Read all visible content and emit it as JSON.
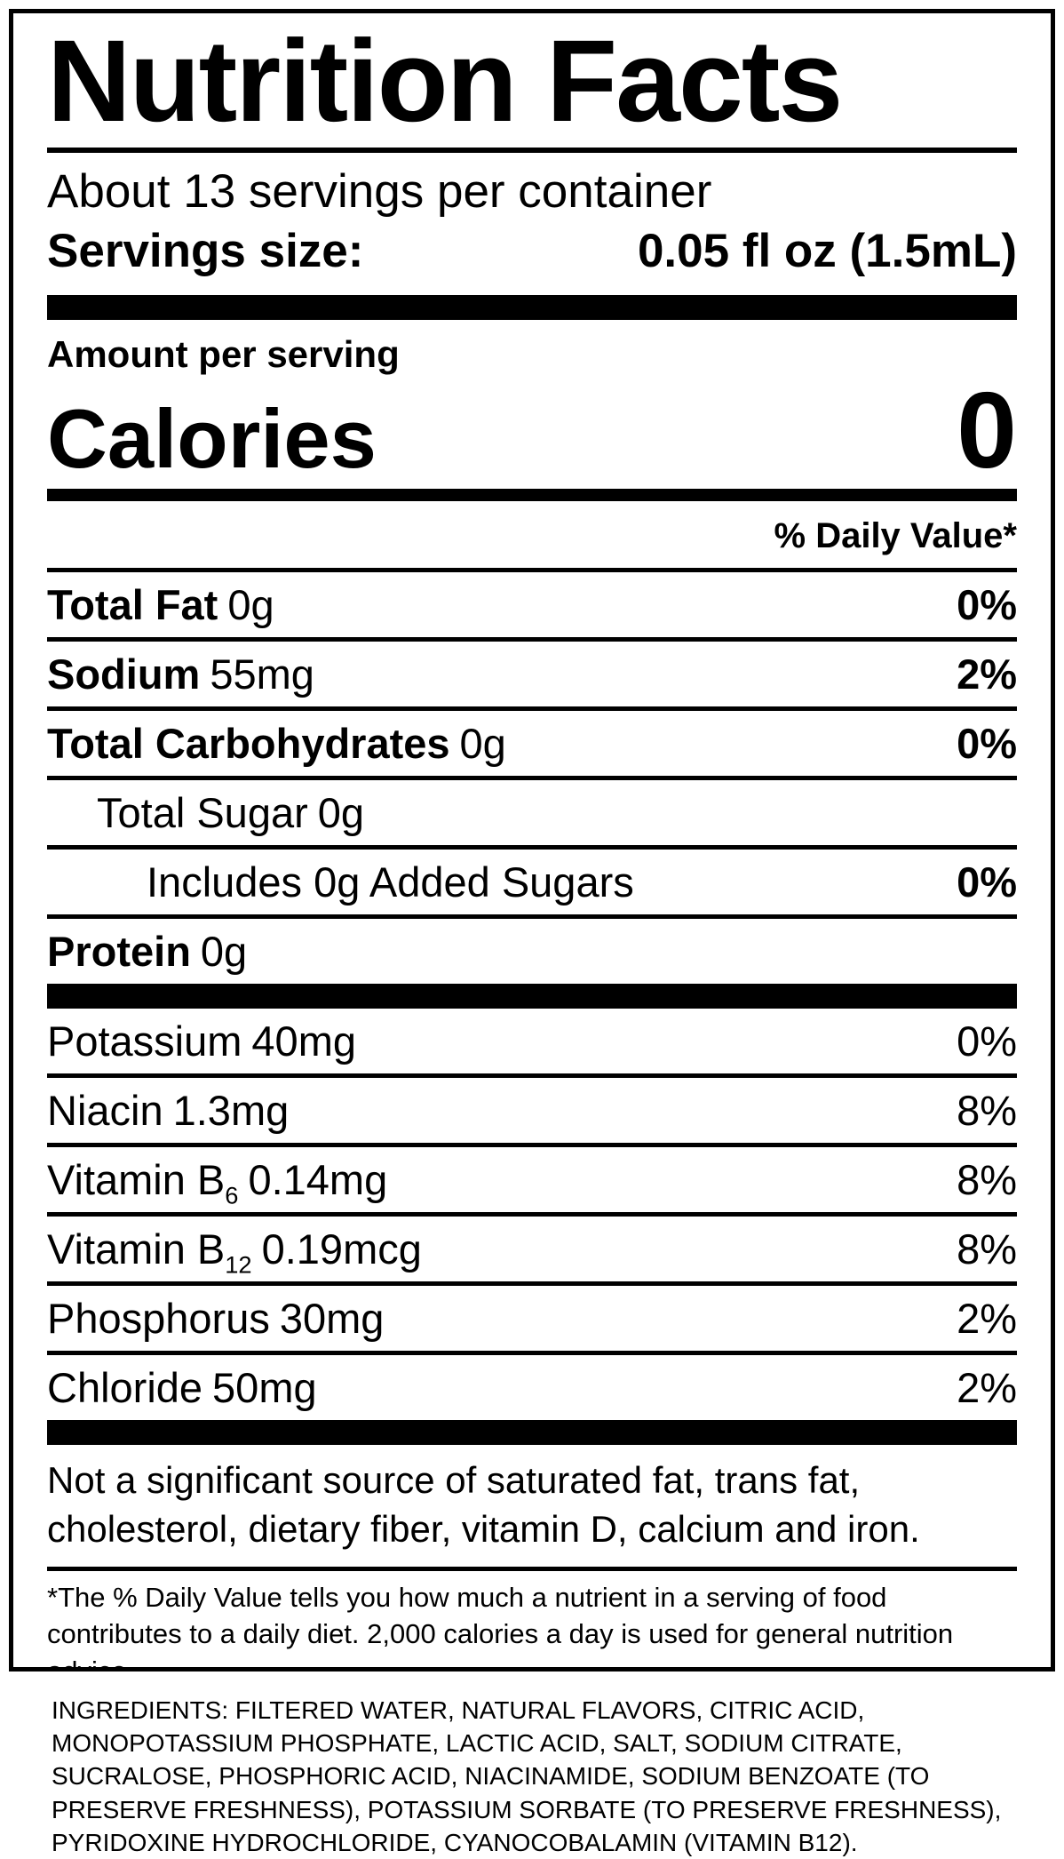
{
  "label": {
    "title": "Nutrition Facts",
    "servings_per_container": "About 13 servings per container",
    "serving_size_label": "Servings size:",
    "serving_size_value": "0.05 fl oz (1.5mL)",
    "amount_per_serving": "Amount per serving",
    "calories_label": "Calories",
    "calories_value": "0",
    "daily_value_header": "% Daily Value*",
    "nutrients": [
      {
        "name": "Total Fat",
        "amount": "0g",
        "dv": "0%"
      },
      {
        "name": "Sodium",
        "amount": "55mg",
        "dv": "2%"
      },
      {
        "name": "Total Carbohydrates",
        "amount": "0g",
        "dv": "0%"
      },
      {
        "name": "Total Sugar",
        "amount": "0g",
        "dv": ""
      },
      {
        "name": "Includes 0g Added Sugars",
        "amount": "",
        "dv": "0%"
      },
      {
        "name": "Protein",
        "amount": "0g",
        "dv": ""
      }
    ],
    "micronutrients": [
      {
        "name": "Potassium",
        "amount": "40mg",
        "dv": "0%"
      },
      {
        "name": "Niacin",
        "amount": "1.3mg",
        "dv": "8%"
      },
      {
        "name": "Vitamin B",
        "sub": "6",
        "amount": "0.14mg",
        "dv": "8%"
      },
      {
        "name": "Vitamin B",
        "sub": "12",
        "amount": "0.19mcg",
        "dv": "8%"
      },
      {
        "name": "Phosphorus",
        "amount": "30mg",
        "dv": "2%"
      },
      {
        "name": "Chloride",
        "amount": "50mg",
        "dv": "2%"
      }
    ],
    "disclaimer": "Not a significant source of saturated fat, trans fat, cholesterol, dietary fiber, vitamin D, calcium and iron.",
    "footnote": "*The % Daily Value tells you how much a nutrient in a serving of food contributes to a daily diet. 2,000 calories a day is used for general nutrition advice."
  },
  "ingredients": "INGREDIENTS: FILTERED WATER, NATURAL FLAVORS, CITRIC ACID, MONOPOTASSIUM PHOSPHATE, LACTIC ACID, SALT, SODIUM CITRATE, SUCRALOSE, PHOSPHORIC ACID, NIACINAMIDE, SODIUM BENZOATE (TO PRESERVE FRESHNESS), POTASSIUM SORBATE (TO PRESERVE FRESHNESS), PYRIDOXINE HYDROCHLORIDE, CYANOCOBALAMIN (VITAMIN B12).",
  "colors": {
    "ink": "#000000",
    "paper": "#ffffff"
  }
}
